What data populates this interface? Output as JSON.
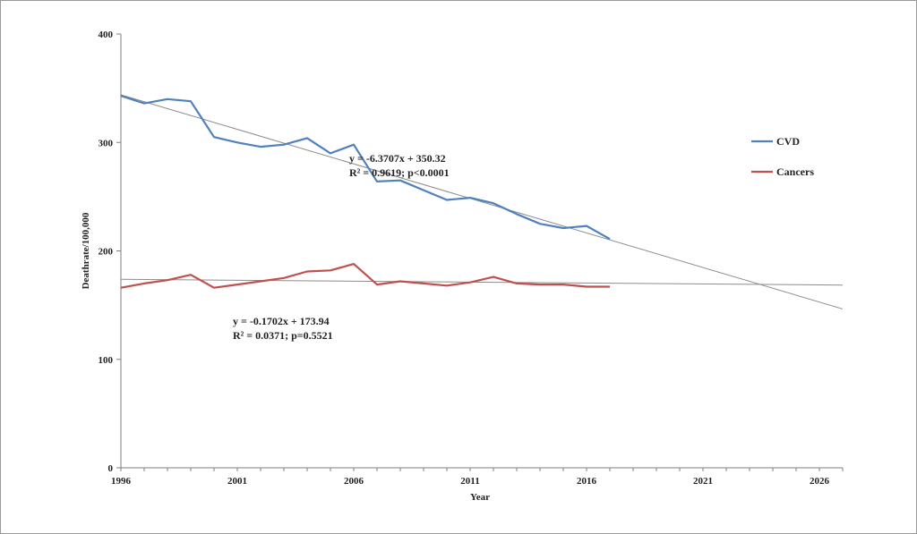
{
  "chart_data": {
    "type": "line",
    "title": "",
    "xlabel": "Year",
    "ylabel": "Deathrate/100,000",
    "xlim": [
      1996,
      2027
    ],
    "ylim": [
      0,
      400
    ],
    "x_ticks": [
      1996,
      2001,
      2006,
      2011,
      2016,
      2021,
      2026
    ],
    "y_ticks": [
      0,
      100,
      200,
      300,
      400
    ],
    "grid": false,
    "legend_position": "right",
    "series": [
      {
        "name": "CVD",
        "color": "#4f81bd",
        "x": [
          1996,
          1997,
          1998,
          1999,
          2000,
          2001,
          2002,
          2003,
          2004,
          2005,
          2006,
          2007,
          2008,
          2009,
          2010,
          2011,
          2012,
          2013,
          2014,
          2015,
          2016,
          2017
        ],
        "values": [
          343,
          336,
          340,
          338,
          305,
          300,
          296,
          298,
          304,
          290,
          298,
          264,
          265,
          256,
          247,
          249,
          244,
          234,
          225,
          221,
          223,
          211
        ]
      },
      {
        "name": "Cancers",
        "color": "#c0504d",
        "x": [
          1996,
          1997,
          1998,
          1999,
          2000,
          2001,
          2002,
          2003,
          2004,
          2005,
          2006,
          2007,
          2008,
          2009,
          2010,
          2011,
          2012,
          2013,
          2014,
          2015,
          2016,
          2017
        ],
        "values": [
          166,
          170,
          173,
          178,
          166,
          169,
          172,
          175,
          181,
          182,
          188,
          169,
          172,
          170,
          168,
          171,
          176,
          170,
          169,
          169,
          167,
          167
        ]
      }
    ],
    "trendlines": [
      {
        "series": "CVD",
        "slope": -6.3707,
        "intercept": 350.32,
        "start_year": 1996,
        "end_year": 2027,
        "color": "#8c8c8c"
      },
      {
        "series": "Cancers",
        "slope": -0.1702,
        "intercept": 173.94,
        "start_year": 1996,
        "end_year": 2027,
        "color": "#8c8c8c"
      }
    ],
    "annotations": [
      {
        "id": "cvd",
        "line1": "y = -6.3707x + 350.32",
        "line2": "R² = 0.9619; p<0.0001",
        "anchor_year": 2003.5,
        "anchor_value": 282
      },
      {
        "id": "cancers",
        "line1": "y = -0.1702x + 173.94",
        "line2": "R² = 0.0371; p=0.5521",
        "anchor_year": 1998.5,
        "anchor_value": 132
      }
    ]
  }
}
